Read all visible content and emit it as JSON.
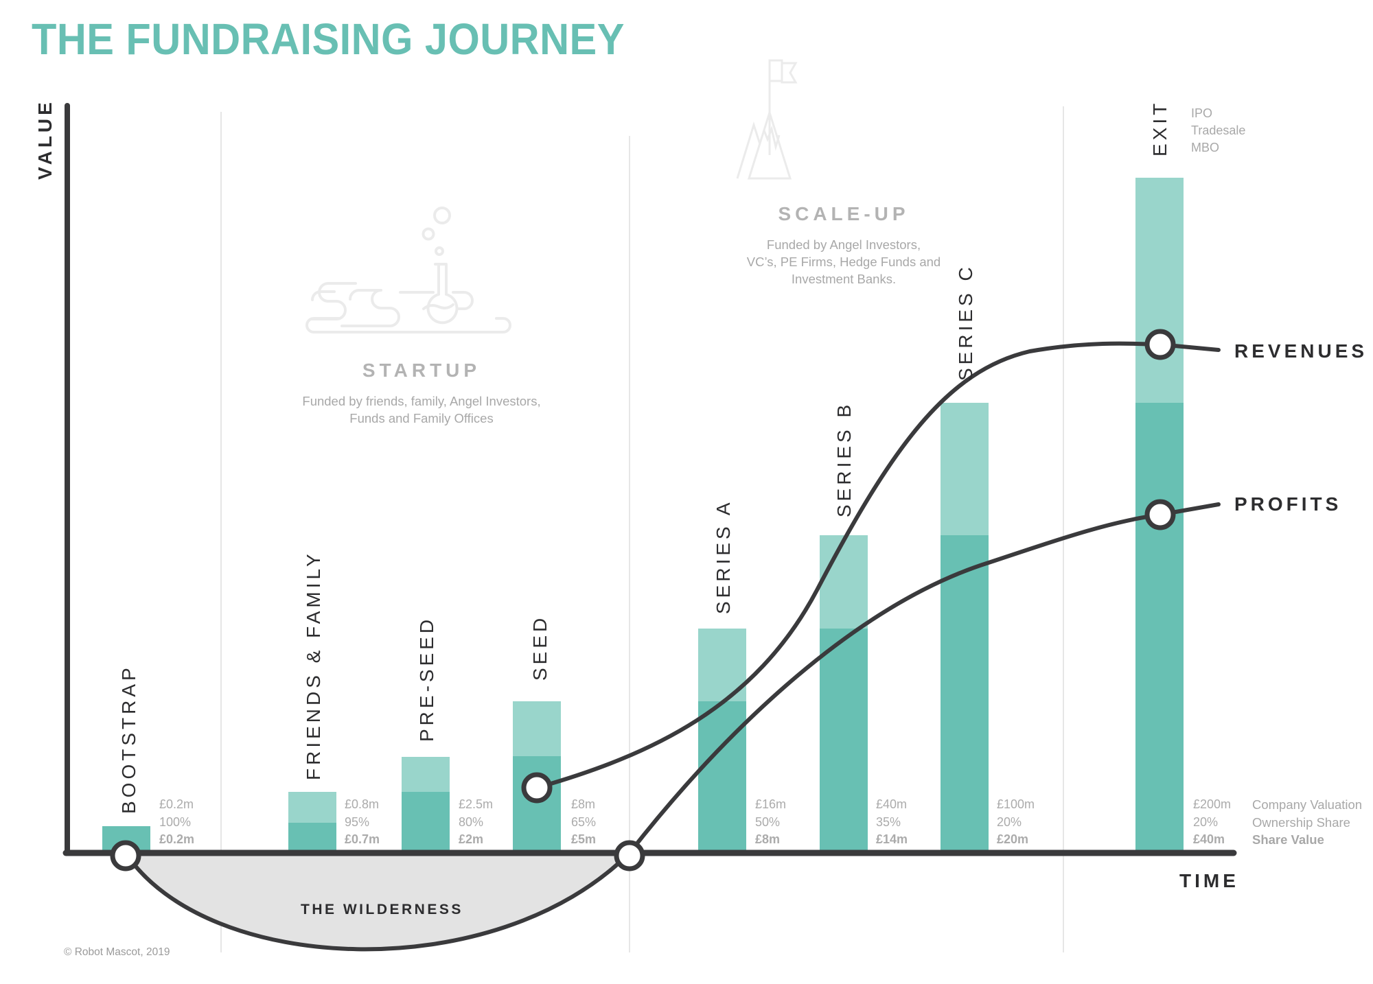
{
  "title": "THE FUNDRAISING JOURNEY",
  "axes": {
    "y_label": "VALUE",
    "x_label": "TIME"
  },
  "stages": {
    "startup": {
      "title": "STARTUP",
      "desc_line1": "Funded by friends, family, Angel Investors,",
      "desc_line2": "Funds and Family Offices",
      "icon": "flask-cloud-icon"
    },
    "scaleup": {
      "title": "SCALE-UP",
      "desc_line1": "Funded by Angel Investors,",
      "desc_line2": "VC’s, PE Firms, Hedge Funds and",
      "desc_line3": "Investment Banks.",
      "icon": "mountain-flag-icon"
    }
  },
  "exit_options": [
    "IPO",
    "Tradesale",
    "MBO"
  ],
  "legend": {
    "valuation": "Company Valuation",
    "ownership": "Ownership Share",
    "share_value": "Share Value"
  },
  "lines": {
    "revenues": "REVENUES",
    "profits": "PROFITS"
  },
  "wilderness": "THE WILDERNESS",
  "copyright": "© Robot Mascot, 2019",
  "colors": {
    "title": "#68bfb3",
    "bar_light": "#99d5cb",
    "bar_dark": "#68c0b3",
    "line": "#3a3a3c",
    "wilderness": "#e3e3e3",
    "text_gray": "#ababab"
  },
  "rounds": [
    {
      "label": "BOOTSTRAP",
      "valuation": "£0.2m",
      "ownership": "100%",
      "share_value": "£0.2m"
    },
    {
      "label": "FRIENDS & FAMILY",
      "valuation": "£0.8m",
      "ownership": "95%",
      "share_value": "£0.7m"
    },
    {
      "label": "PRE-SEED",
      "valuation": "£2.5m",
      "ownership": "80%",
      "share_value": "£2m"
    },
    {
      "label": "SEED",
      "valuation": "£8m",
      "ownership": "65%",
      "share_value": "£5m"
    },
    {
      "label": "SERIES A",
      "valuation": "£16m",
      "ownership": "50%",
      "share_value": "£8m"
    },
    {
      "label": "SERIES B",
      "valuation": "£40m",
      "ownership": "35%",
      "share_value": "£14m"
    },
    {
      "label": "SERIES C",
      "valuation": "£100m",
      "ownership": "20%",
      "share_value": "£20m"
    },
    {
      "label": "EXIT",
      "valuation": "£200m",
      "ownership": "20%",
      "share_value": "£40m"
    }
  ],
  "chart_data": {
    "type": "bar",
    "title": "THE FUNDRAISING JOURNEY",
    "xlabel": "TIME",
    "ylabel": "VALUE",
    "categories": [
      "BOOTSTRAP",
      "FRIENDS & FAMILY",
      "PRE-SEED",
      "SEED",
      "SERIES A",
      "SERIES B",
      "SERIES C",
      "EXIT"
    ],
    "series": [
      {
        "name": "Company Valuation (£m)",
        "values": [
          0.2,
          0.8,
          2.5,
          8,
          16,
          40,
          100,
          200
        ]
      },
      {
        "name": "Ownership Share (%)",
        "values": [
          100,
          95,
          80,
          65,
          50,
          35,
          20,
          20
        ]
      },
      {
        "name": "Share Value (£m)",
        "values": [
          0.2,
          0.7,
          2,
          5,
          8,
          14,
          20,
          40
        ]
      }
    ],
    "stacked_visual": true,
    "illustrative_lines": [
      {
        "name": "REVENUES",
        "note": "S-curve rising from Seed to Exit"
      },
      {
        "name": "PROFITS",
        "note": "dips below axis in The Wilderness, crosses break-even before Series A, rises to Exit"
      }
    ],
    "annotations": [
      "THE WILDERNESS",
      "STARTUP",
      "SCALE-UP",
      "IPO",
      "Tradesale",
      "MBO"
    ],
    "grid": false,
    "legend_position": "right"
  }
}
